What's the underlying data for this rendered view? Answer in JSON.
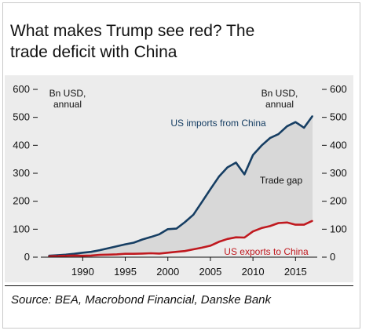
{
  "title_line1": "What makes Trump see red? The",
  "title_line2": "trade deficit with China",
  "source": "Source: BEA, Macrobond Financial, Danske Bank",
  "colors": {
    "imports": "#163e63",
    "exports": "#c0191f",
    "gap": "#d8d8d8",
    "panel": "#ececec"
  },
  "chart_data": {
    "type": "area",
    "x": [
      1986,
      1987,
      1988,
      1989,
      1990,
      1991,
      1992,
      1993,
      1994,
      1995,
      1996,
      1997,
      1998,
      1999,
      2000,
      2001,
      2002,
      2003,
      2004,
      2005,
      2006,
      2007,
      2008,
      2009,
      2010,
      2011,
      2012,
      2013,
      2014,
      2015,
      2016,
      2017
    ],
    "series": [
      {
        "name": "US imports from China",
        "values": [
          5,
          7,
          9,
          12,
          16,
          19,
          25,
          32,
          39,
          46,
          52,
          63,
          72,
          82,
          100,
          102,
          125,
          152,
          197,
          243,
          288,
          321,
          338,
          296,
          365,
          399,
          426,
          440,
          468,
          483,
          463,
          505
        ]
      },
      {
        "name": "US exports to China",
        "values": [
          3,
          4,
          5,
          6,
          5,
          6,
          8,
          9,
          10,
          12,
          12,
          13,
          14,
          13,
          16,
          19,
          22,
          28,
          34,
          41,
          55,
          65,
          71,
          70,
          92,
          104,
          111,
          122,
          124,
          116,
          116,
          130
        ]
      }
    ],
    "annotations": {
      "gap_label": "Trade gap"
    },
    "y_left_label": [
      "Bn USD,",
      "annual"
    ],
    "y_right_label": [
      "Bn USD,",
      "annual"
    ],
    "x_ticks": [
      "1990",
      "1995",
      "2000",
      "2005",
      "2010",
      "2015"
    ],
    "y_ticks": [
      "0",
      "100",
      "200",
      "300",
      "400",
      "500",
      "600"
    ],
    "ylim": [
      0,
      600
    ],
    "grid": false
  }
}
